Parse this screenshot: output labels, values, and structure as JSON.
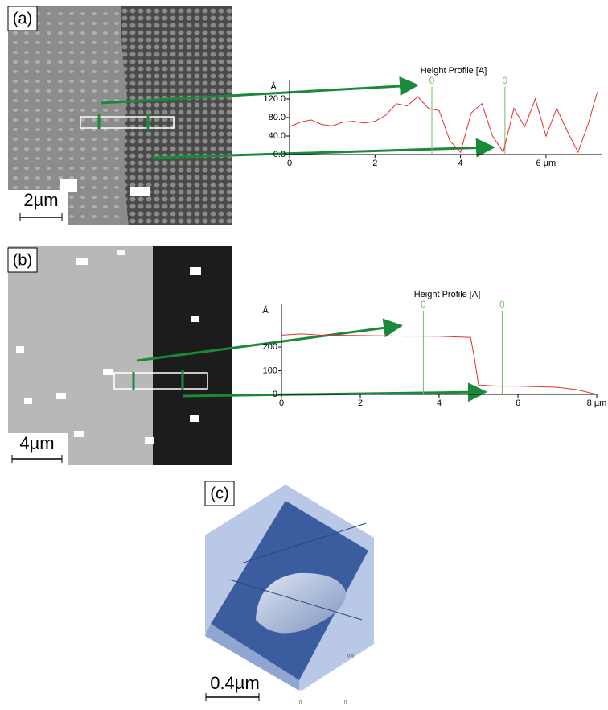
{
  "panels": [
    {
      "label": "(a)",
      "scale_bar": "2µm"
    },
    {
      "label": "(b)",
      "scale_bar": "4µm"
    },
    {
      "label": "(c)",
      "scale_bar": "0.4µm",
      "axis_labels": [
        "0.5",
        "0",
        "0"
      ]
    }
  ],
  "chart_data": [
    {
      "type": "line",
      "title": "Height Profile [A]",
      "y_label": "Å",
      "x": [
        0,
        0.25,
        0.5,
        0.75,
        1,
        1.25,
        1.5,
        1.75,
        2,
        2.25,
        2.5,
        2.75,
        3,
        3.25,
        3.5,
        3.75,
        4,
        4.25,
        4.5,
        4.75,
        5,
        5.25,
        5.5,
        5.75,
        6,
        6.25,
        6.5,
        6.75,
        7,
        7.2
      ],
      "series": [
        {
          "color": "#e03030",
          "values": [
            60,
            70,
            75,
            65,
            62,
            70,
            72,
            68,
            72,
            85,
            110,
            105,
            125,
            100,
            95,
            30,
            5,
            90,
            110,
            40,
            5,
            100,
            60,
            120,
            40,
            100,
            50,
            5,
            70,
            135
          ]
        }
      ],
      "xlim": [
        0,
        7.3
      ],
      "ylim": [
        0,
        160
      ],
      "xticks": [
        0,
        2,
        4,
        {
          "value": 6,
          "label": "6 µm"
        }
      ],
      "yticks": [
        {
          "value": 0,
          "label": "0.0"
        },
        {
          "value": 40,
          "label": "40.0"
        },
        {
          "value": 80,
          "label": "80.0"
        },
        {
          "value": 120,
          "label": "120.0"
        }
      ],
      "markers": [
        {
          "value": 3.33,
          "label": "0"
        },
        {
          "value": 5.04,
          "label": "0"
        }
      ],
      "marker_color": "#6cc060"
    },
    {
      "type": "line",
      "title": "Height Profile [A]",
      "y_label": "Å",
      "x": [
        0,
        0.5,
        1,
        2,
        3,
        4,
        4.8,
        4.9,
        5,
        5.5,
        6,
        7,
        7.5,
        8
      ],
      "series": [
        {
          "color": "#e03030",
          "values": [
            250,
            255,
            250,
            248,
            246,
            245,
            240,
            150,
            40,
            35,
            35,
            30,
            20,
            0
          ]
        }
      ],
      "xlim": [
        0,
        8
      ],
      "ylim": [
        0,
        380
      ],
      "xticks": [
        0,
        2,
        4,
        6,
        {
          "value": 8,
          "label": "8 µm"
        }
      ],
      "yticks": [
        0,
        100,
        200
      ],
      "markers": [
        {
          "value": 3.6,
          "label": "0"
        },
        {
          "value": 5.6,
          "label": "0"
        }
      ],
      "marker_color": "#6cc060"
    }
  ]
}
